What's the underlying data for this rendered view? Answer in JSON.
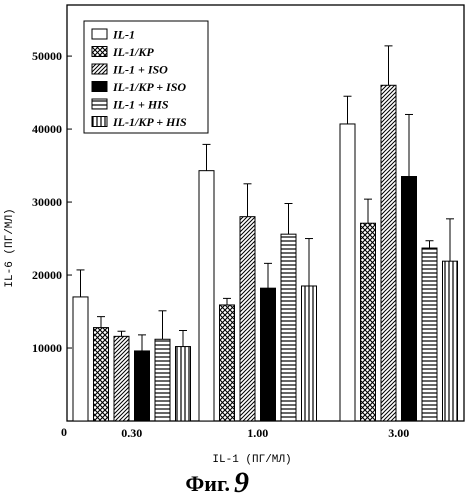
{
  "caption": {
    "prefix": "Фиг.",
    "number": "9"
  },
  "chart_data": {
    "type": "bar",
    "xlabel": "IL-1 (ПГ/МЛ)",
    "ylabel": "IL-6 (ПГ/МЛ)",
    "ylim": [
      0,
      57000
    ],
    "y_ticks": [
      {
        "value": 10000,
        "label": "10000"
      },
      {
        "value": 20000,
        "label": "20000"
      },
      {
        "value": 30000,
        "label": "30000"
      },
      {
        "value": 40000,
        "label": "40000"
      },
      {
        "value": 50000,
        "label": "50000"
      }
    ],
    "zero_label": "0",
    "categories": [
      "0.30",
      "1.00",
      "3.00"
    ],
    "legend_placement": "top-left",
    "grid": false,
    "series": [
      {
        "name": "IL-1",
        "pattern": "white",
        "values": [
          17000,
          34300,
          40700
        ],
        "errors": [
          3700,
          3600,
          3800
        ]
      },
      {
        "name": "IL-1/KP",
        "pattern": "crosshatch",
        "values": [
          12800,
          15900,
          27100
        ],
        "errors": [
          1500,
          900,
          3300
        ]
      },
      {
        "name": "IL-1 + ISO",
        "pattern": "diagonal",
        "values": [
          11600,
          28000,
          46000
        ],
        "errors": [
          700,
          4500,
          5400
        ]
      },
      {
        "name": "IL-1/KP + ISO",
        "pattern": "black",
        "values": [
          9600,
          18200,
          33500
        ],
        "errors": [
          2200,
          3400,
          8500
        ]
      },
      {
        "name": "IL-1 + HIS",
        "pattern": "horizontal",
        "values": [
          11200,
          25600,
          23700
        ],
        "errors": [
          3900,
          4200,
          1000
        ]
      },
      {
        "name": "IL-1/KP + HIS",
        "pattern": "vertical",
        "values": [
          10200,
          18500,
          21900
        ],
        "errors": [
          2200,
          6500,
          5800
        ]
      }
    ]
  }
}
